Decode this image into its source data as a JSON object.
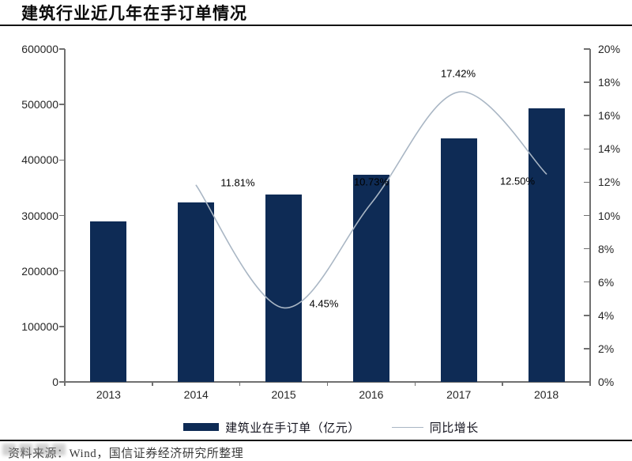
{
  "title": "建筑行业近几年在手订单情况",
  "source_note": "资料来源：Wind，国信证券经济研究所整理",
  "colors": {
    "bar": "#0e2b55",
    "line": "#a9b6c4",
    "axis": "#707070",
    "tick_label": "#262626",
    "data_label": "#000000"
  },
  "legend": {
    "bar_label": "建筑业在手订单（亿元）",
    "line_label": "同比增长"
  },
  "chart_data": {
    "type": "bar",
    "subtype": "bar+line dual-axis combo",
    "title": "建筑行业近几年在手订单情况",
    "categories": [
      "2013",
      "2014",
      "2015",
      "2016",
      "2017",
      "2018"
    ],
    "series": [
      {
        "name": "建筑业在手订单（亿元）",
        "type": "bar",
        "axis": "left",
        "values": [
          289100,
          323200,
          337600,
          373800,
          438900,
          493700
        ]
      },
      {
        "name": "同比增长",
        "type": "line",
        "axis": "right",
        "values": [
          null,
          11.81,
          4.45,
          10.73,
          17.42,
          12.5
        ],
        "point_labels": [
          null,
          "11.81%",
          "4.45%",
          "10.73%",
          "17.42%",
          "12.50%"
        ]
      }
    ],
    "left_axis": {
      "min": 0,
      "max": 600000,
      "step": 100000,
      "ticks": [
        "0",
        "100000",
        "200000",
        "300000",
        "400000",
        "500000",
        "600000"
      ]
    },
    "right_axis": {
      "min": 0,
      "max": 20,
      "step": 2,
      "ticks": [
        "0%",
        "2%",
        "4%",
        "6%",
        "8%",
        "10%",
        "12%",
        "14%",
        "16%",
        "18%",
        "20%"
      ]
    },
    "grid": false,
    "legend_position": "bottom"
  }
}
